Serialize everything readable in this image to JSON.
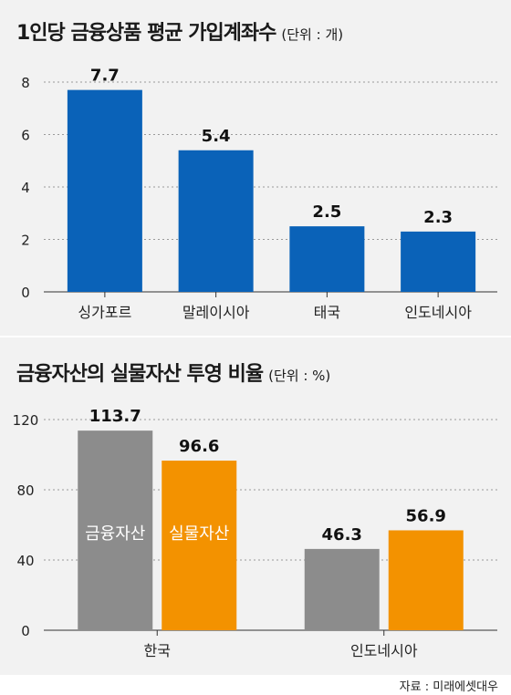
{
  "chart_data": [
    {
      "type": "bar",
      "title": "1인당 금융상품 평균 가입계좌수",
      "unit_label": "(단위 : 개)",
      "categories": [
        "싱가포르",
        "말레이시아",
        "태국",
        "인도네시아"
      ],
      "series": [
        {
          "values": [
            7.7,
            5.4,
            2.5,
            2.3
          ],
          "color": "#0a62b8"
        }
      ],
      "value_labels": [
        "7.7",
        "5.4",
        "2.5",
        "2.3"
      ],
      "yticks": [
        "0",
        "2",
        "4",
        "6",
        "8"
      ],
      "ylim": [
        0,
        8
      ],
      "grid": true
    },
    {
      "type": "bar",
      "title": "금융자산의 실물자산 투영 비율",
      "unit_label": "(단위 : %)",
      "categories": [
        "한국",
        "인도네시아"
      ],
      "series": [
        {
          "name": "금융자산",
          "values": [
            113.7,
            46.3
          ],
          "color": "#8c8c8c"
        },
        {
          "name": "실물자산",
          "values": [
            96.6,
            56.9
          ],
          "color": "#f39200"
        }
      ],
      "value_labels": [
        [
          "113.7",
          "46.3"
        ],
        [
          "96.6",
          "56.9"
        ]
      ],
      "yticks": [
        "0",
        "40",
        "80",
        "120"
      ],
      "ylim": [
        0,
        120
      ],
      "grid": true
    }
  ],
  "source": "자료 : 미래에셋대우"
}
